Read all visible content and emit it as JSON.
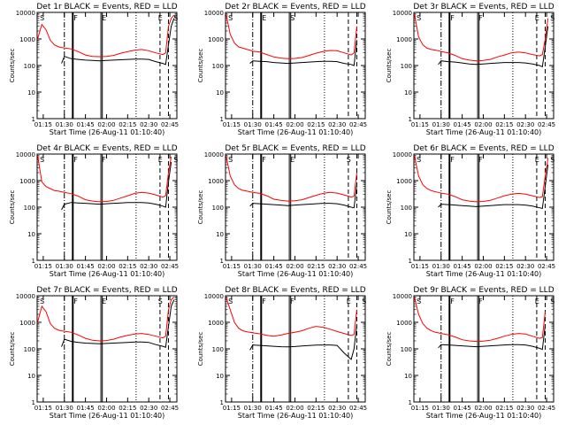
{
  "panels": [
    {
      "title": "Det 1r BLACK = Events, RED = LLD",
      "xlabel": "Start Time (26-Aug-11 01:10:40)",
      "ylabel": "Counts/sec",
      "markers": [
        "S",
        "F",
        "E",
        "E",
        "S"
      ]
    },
    {
      "title": "Det 2r BLACK = Events, RED = LLD",
      "xlabel": "Start Time (26-Aug-11 01:10:40)",
      "ylabel": "Counts/sec",
      "markers": [
        "S",
        "E",
        "S"
      ]
    },
    {
      "title": "Det 3r BLACK = Events, RED = LLD",
      "xlabel": "Start Time (26-Aug-11 01:10:40)",
      "ylabel": "Counts/sec",
      "markers": [
        "S",
        "F",
        "F",
        "E",
        "S"
      ]
    },
    {
      "title": "Det 4r BLACK = Events, RED = LLD",
      "xlabel": "Start Time (26-Aug-11 01:10:40)",
      "ylabel": "Counts/sec",
      "markers": [
        "S",
        "F",
        "F",
        "E",
        "S"
      ]
    },
    {
      "title": "Det 5r BLACK = Events, RED = LLD",
      "xlabel": "Start Time (26-Aug-11 01:10:40)",
      "ylabel": "Counts/sec",
      "markers": [
        "S",
        "F",
        "E",
        "S"
      ]
    },
    {
      "title": "Det 6r BLACK = Events, RED = LLD",
      "xlabel": "Start Time (26-Aug-11 01:10:40)",
      "ylabel": "Counts/sec",
      "markers": [
        "S",
        "F",
        "F",
        "E",
        "S"
      ]
    },
    {
      "title": "Det 7r BLACK = Events, RED = LLD",
      "xlabel": "Start Time (26-Aug-11 01:10:40)",
      "ylabel": "Counts/sec",
      "markers": [
        "S",
        "F",
        "E",
        "S"
      ]
    },
    {
      "title": "Det 8r BLACK = Events, RED = LLD",
      "xlabel": "Start Time (26-Aug-11 01:10:40)",
      "ylabel": "Counts/sec",
      "markers": [
        "S",
        "F",
        "F",
        "E",
        "S"
      ]
    },
    {
      "title": "Det 9r BLACK = Events, RED = LLD",
      "xlabel": "Start Time (26-Aug-11 01:10:40)",
      "ylabel": "Counts/sec",
      "markers": [
        "S",
        "F",
        "F",
        "E",
        "S"
      ]
    }
  ],
  "chart_data": {
    "type": "line",
    "grid": false,
    "yscale": "log",
    "ylim": [
      1,
      10000
    ],
    "xlim": [
      "01:10:40",
      "02:50:00"
    ],
    "x_tick_labels": [
      "01:15",
      "01:30",
      "01:45",
      "02:00",
      "02:15",
      "02:30",
      "02:45"
    ],
    "y_tick_labels": [
      "1",
      "10",
      "100",
      "1000",
      "10000"
    ],
    "colors": {
      "events": "#000000",
      "lld": "#ff0000"
    },
    "series_names_from_title": {
      "BLACK": "Events",
      "RED": "LLD"
    },
    "x": [
      "01:11",
      "01:14",
      "01:17",
      "01:20",
      "01:23",
      "01:26",
      "01:28",
      "01:30",
      "01:35",
      "01:40",
      "01:45",
      "01:50",
      "01:55",
      "02:00",
      "02:05",
      "02:10",
      "02:15",
      "02:20",
      "02:25",
      "02:30",
      "02:35",
      "02:40",
      "02:42",
      "02:44",
      "02:46",
      "02:48"
    ],
    "series": [
      {
        "panel": 1,
        "lld": [
          1000,
          3500,
          2200,
          900,
          600,
          500,
          480,
          460,
          420,
          330,
          250,
          220,
          215,
          220,
          240,
          290,
          330,
          380,
          400,
          360,
          300,
          260,
          300,
          3000,
          6000,
          8000
        ],
        "events": [
          null,
          null,
          null,
          null,
          null,
          null,
          120,
          220,
          180,
          170,
          160,
          155,
          150,
          155,
          160,
          165,
          170,
          175,
          175,
          170,
          140,
          120,
          110,
          600,
          3000,
          6000
        ]
      },
      {
        "panel": 2,
        "lld": [
          9000,
          1500,
          700,
          500,
          450,
          400,
          380,
          350,
          320,
          260,
          210,
          190,
          180,
          185,
          200,
          240,
          290,
          340,
          370,
          360,
          300,
          250,
          300,
          3000,
          null,
          null
        ],
        "events": [
          null,
          null,
          null,
          null,
          null,
          null,
          120,
          150,
          145,
          140,
          130,
          125,
          120,
          125,
          130,
          135,
          140,
          145,
          145,
          140,
          120,
          110,
          100,
          900,
          null,
          null
        ]
      },
      {
        "panel": 3,
        "lld": [
          9000,
          1200,
          600,
          450,
          400,
          380,
          360,
          340,
          300,
          240,
          180,
          160,
          150,
          155,
          170,
          210,
          250,
          300,
          320,
          300,
          260,
          230,
          260,
          1000,
          6000,
          null
        ],
        "events": [
          null,
          null,
          null,
          null,
          null,
          null,
          110,
          150,
          140,
          135,
          125,
          115,
          110,
          115,
          120,
          125,
          130,
          130,
          130,
          125,
          115,
          100,
          90,
          500,
          3000,
          null
        ]
      },
      {
        "panel": 4,
        "lld": [
          9000,
          900,
          600,
          500,
          420,
          400,
          380,
          360,
          320,
          260,
          190,
          170,
          160,
          165,
          180,
          220,
          270,
          330,
          360,
          340,
          290,
          240,
          270,
          2000,
          8000,
          null
        ],
        "events": [
          null,
          null,
          null,
          null,
          null,
          null,
          80,
          130,
          150,
          145,
          140,
          135,
          130,
          135,
          140,
          145,
          150,
          150,
          150,
          145,
          130,
          110,
          100,
          900,
          5000,
          null
        ]
      },
      {
        "panel": 5,
        "lld": [
          9000,
          1500,
          700,
          500,
          430,
          400,
          380,
          360,
          330,
          270,
          200,
          180,
          170,
          175,
          190,
          230,
          280,
          330,
          360,
          340,
          290,
          240,
          260,
          2000,
          null,
          null
        ],
        "events": [
          null,
          null,
          null,
          null,
          null,
          null,
          110,
          140,
          135,
          130,
          125,
          120,
          115,
          120,
          125,
          130,
          135,
          140,
          140,
          135,
          120,
          100,
          95,
          700,
          null,
          null
        ]
      },
      {
        "panel": 6,
        "lld": [
          9000,
          1500,
          700,
          500,
          420,
          380,
          360,
          340,
          310,
          250,
          190,
          170,
          160,
          165,
          180,
          220,
          270,
          310,
          330,
          310,
          270,
          230,
          250,
          1500,
          7000,
          null
        ],
        "events": [
          null,
          null,
          null,
          null,
          null,
          null,
          100,
          130,
          125,
          120,
          115,
          110,
          105,
          110,
          115,
          120,
          125,
          125,
          125,
          120,
          110,
          95,
          90,
          600,
          4000,
          null
        ]
      },
      {
        "panel": 7,
        "lld": [
          1000,
          4000,
          2500,
          900,
          600,
          500,
          480,
          460,
          420,
          330,
          250,
          210,
          200,
          205,
          230,
          280,
          320,
          360,
          380,
          350,
          300,
          260,
          300,
          3000,
          7000,
          9000
        ],
        "events": [
          null,
          null,
          null,
          null,
          null,
          null,
          120,
          230,
          190,
          175,
          165,
          160,
          155,
          160,
          165,
          170,
          175,
          180,
          180,
          175,
          145,
          125,
          115,
          700,
          4000,
          7000
        ]
      },
      {
        "panel": 8,
        "lld": [
          9000,
          3000,
          1000,
          600,
          480,
          440,
          420,
          400,
          370,
          320,
          300,
          330,
          380,
          420,
          480,
          600,
          700,
          650,
          550,
          450,
          380,
          320,
          350,
          3000,
          null,
          null
        ],
        "events": [
          null,
          null,
          null,
          null,
          null,
          null,
          90,
          140,
          135,
          130,
          125,
          120,
          118,
          122,
          128,
          133,
          138,
          140,
          140,
          135,
          70,
          40,
          100,
          800,
          null,
          null
        ]
      },
      {
        "panel": 9,
        "lld": [
          9000,
          2000,
          900,
          600,
          480,
          420,
          400,
          380,
          340,
          280,
          220,
          200,
          190,
          195,
          210,
          250,
          300,
          350,
          380,
          360,
          300,
          250,
          270,
          2500,
          null,
          null
        ],
        "events": [
          null,
          null,
          null,
          null,
          null,
          null,
          110,
          145,
          140,
          135,
          130,
          125,
          120,
          125,
          130,
          135,
          140,
          145,
          145,
          140,
          125,
          105,
          95,
          800,
          null,
          null
        ]
      }
    ]
  }
}
